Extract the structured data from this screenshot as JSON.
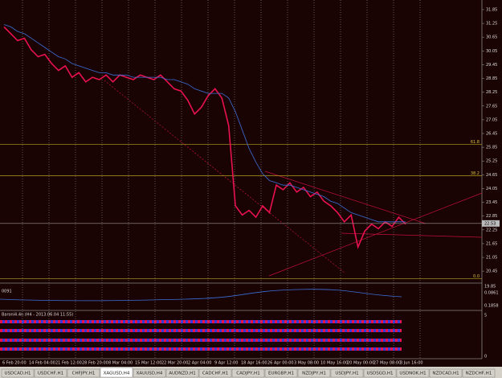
{
  "chart_data": {
    "type": "line",
    "series": [
      {
        "color": "#e8124e",
        "values": [
          31.1,
          30.8,
          30.5,
          30.6,
          30.1,
          29.8,
          29.9,
          29.5,
          29.2,
          29.4,
          28.9,
          29.1,
          28.7,
          28.9,
          28.8,
          29.0,
          28.7,
          29.0,
          28.9,
          28.8,
          29.0,
          28.9,
          28.8,
          29.0,
          28.7,
          28.4,
          28.3,
          27.9,
          27.3,
          27.6,
          28.1,
          28.4,
          28.0,
          26.8,
          23.3,
          22.9,
          23.1,
          22.8,
          23.3,
          23.0,
          24.2,
          24.0,
          24.3,
          23.9,
          24.1,
          23.7,
          23.9,
          23.5,
          23.3,
          23.0,
          22.6,
          22.9,
          21.5,
          22.2,
          22.5,
          22.3,
          22.6,
          22.4,
          22.8,
          22.5
        ]
      },
      {
        "color": "#3b6fd8",
        "values": [
          31.2,
          31.1,
          30.9,
          30.8,
          30.6,
          30.4,
          30.2,
          30.0,
          29.8,
          29.7,
          29.5,
          29.4,
          29.3,
          29.2,
          29.1,
          29.1,
          29.0,
          29.0,
          29.0,
          28.9,
          28.9,
          28.9,
          28.9,
          28.9,
          28.8,
          28.8,
          28.7,
          28.6,
          28.4,
          28.3,
          28.2,
          28.2,
          28.2,
          28.0,
          27.4,
          26.6,
          25.8,
          25.2,
          24.7,
          24.4,
          24.3,
          24.2,
          24.2,
          24.1,
          24.0,
          23.9,
          23.8,
          23.7,
          23.5,
          23.4,
          23.2,
          23.0,
          22.9,
          22.8,
          22.7,
          22.6,
          22.6,
          22.6,
          22.6,
          22.6
        ]
      }
    ],
    "ylim": [
      20.0,
      32.27
    ],
    "yticks": [
      31.85,
      31.25,
      30.65,
      30.05,
      29.45,
      28.85,
      28.25,
      27.65,
      27.05,
      26.45,
      25.85,
      25.25,
      24.65,
      24.05,
      23.45,
      22.85,
      22.25,
      21.65,
      21.05,
      20.45
    ],
    "xtick_labels": [
      "6 Feb 20:00",
      "14 Feb 04:00",
      "21 Feb 12:00",
      "28 Feb 20:00",
      "8 Mar 04:00",
      "15 Mar 12:00",
      "22 Mar 20:00",
      "2 Apr 04:00",
      "9 Apr 12:00",
      "18 Apr 16:00",
      "26 Apr 00:00",
      "3 May 08:00",
      "10 May 16:00",
      "20 May 00:00",
      "27 May 08:00",
      "3 Jun 16:00"
    ],
    "last_price": 22.53,
    "levels": [
      {
        "value": 25.97,
        "label": "61.8"
      },
      {
        "value": 24.61,
        "label": "38.2"
      },
      {
        "value": 20.13,
        "label": "0.0"
      }
    ],
    "grid": true
  },
  "panels": [
    {
      "label": "0091",
      "axis_labels": [
        "19.85",
        "0.0861",
        "0.1858"
      ]
    },
    {
      "label": "Baroni4.4n (H4 - 2013.06.04 11:55)",
      "axis_labels": [
        "5",
        "0"
      ]
    }
  ],
  "tabs": [
    "USDCAD,H1",
    "USDCHF,H1",
    "CHFJPY,H1",
    "XAGUSD,H4",
    "XAUUSD,H4",
    "AUDNZD,H1",
    "CADCHF,H1",
    "CADJPY,H1",
    "EURGBP,H1",
    "NZDJPY,H1",
    "USDJPY,H1",
    "USDSGD,H1",
    "USDNOK,H1",
    "NZDCAD,H1",
    "NZDCHF,H1"
  ],
  "active_tab": 3
}
